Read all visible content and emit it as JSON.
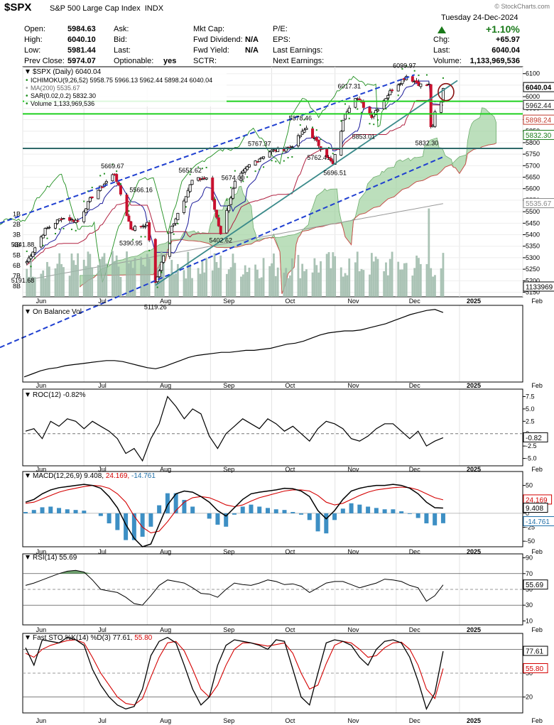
{
  "header": {
    "symbol": "$SPX",
    "name": "S&P 500 Large Cap Index",
    "exchange": "INDX",
    "watermark": "© StockCharts.com",
    "date": "Tuesday  24-Dec-2024",
    "change_pct": "+1.10%",
    "quote": [
      {
        "label": "Open:",
        "value": "5984.63"
      },
      {
        "label": "High:",
        "value": "6040.10"
      },
      {
        "label": "Low:",
        "value": "5981.44"
      },
      {
        "label": "Prev Close:",
        "value": "5974.07"
      }
    ],
    "quote2": [
      {
        "label": "Ask:",
        "value": ""
      },
      {
        "label": "Bid:",
        "value": ""
      },
      {
        "label": "Last:",
        "value": ""
      },
      {
        "label": "Optionable:",
        "value": "yes"
      }
    ],
    "quote3": [
      {
        "label": "Mkt Cap:",
        "value": ""
      },
      {
        "label": "Fwd Dividend:",
        "value": "N/A"
      },
      {
        "label": "Fwd Yield:",
        "value": "N/A"
      },
      {
        "label": "SCTR:",
        "value": ""
      }
    ],
    "quote4": [
      {
        "label": "P/E:",
        "value": ""
      },
      {
        "label": "EPS:",
        "value": ""
      },
      {
        "label": "Last Earnings:",
        "value": ""
      },
      {
        "label": "Next Earnings:",
        "value": ""
      }
    ],
    "quote5": [
      {
        "label": "Chg:",
        "value": "+65.97"
      },
      {
        "label": "Last:",
        "value": "6040.04"
      },
      {
        "label": "Volume:",
        "value": "1,133,969,536"
      }
    ]
  },
  "chart_data": [
    {
      "type": "candlestick",
      "title": "$SPX (Daily) 6040.04",
      "legend": [
        {
          "name": "ICHIMOKU(9,26,52)",
          "values": "5958.75 5966.13 5962.44 5898.24 6040.04"
        },
        {
          "name": "MA(200)",
          "values": "5535.67"
        },
        {
          "name": "SAR(0.02,0.2)",
          "values": "5832.30"
        },
        {
          "name": "Volume",
          "values": "1,133,969,536"
        }
      ],
      "x_labels": [
        "Jun",
        "Jul",
        "Aug",
        "Sep",
        "Oct",
        "Nov",
        "Dec",
        "2025",
        "Feb"
      ],
      "y_ticks": [
        5150,
        5200,
        5250,
        5300,
        5350,
        5400,
        5450,
        5500,
        5550,
        5600,
        5650,
        5700,
        5750,
        5800,
        5850,
        5900,
        5950,
        6000,
        6050,
        6100
      ],
      "y_tick_labels": [
        "5150",
        "5200",
        "5250",
        "5300",
        "5350",
        "5400",
        "5450",
        "5500",
        "5550",
        "5600",
        "5650",
        "5700",
        "5750",
        "5800",
        "5850",
        "5900",
        "5950",
        "6000",
        "6050",
        "6100"
      ],
      "volume_labels": [
        "8B",
        "7B",
        "6B",
        "5B",
        "4B",
        "3B",
        "2B",
        "1B"
      ],
      "ylim": [
        5130,
        6130
      ],
      "close_anchors": [
        {
          "date": "2024-06-03",
          "value": 5283
        },
        {
          "date": "2024-06-12",
          "value": 5421
        },
        {
          "date": "2024-06-20",
          "value": 5473
        },
        {
          "date": "2024-06-28",
          "value": 5460
        },
        {
          "date": "2024-07-05",
          "value": 5567
        },
        {
          "date": "2024-07-16",
          "value": 5667
        },
        {
          "date": "2024-07-24",
          "value": 5427
        },
        {
          "date": "2024-08-01",
          "value": 5446
        },
        {
          "date": "2024-08-05",
          "value": 5186
        },
        {
          "date": "2024-08-13",
          "value": 5434
        },
        {
          "date": "2024-08-23",
          "value": 5634
        },
        {
          "date": "2024-08-30",
          "value": 5648
        },
        {
          "date": "2024-09-06",
          "value": 5408
        },
        {
          "date": "2024-09-13",
          "value": 5626
        },
        {
          "date": "2024-09-20",
          "value": 5702
        },
        {
          "date": "2024-09-30",
          "value": 5762
        },
        {
          "date": "2024-10-10",
          "value": 5780
        },
        {
          "date": "2024-10-18",
          "value": 5864
        },
        {
          "date": "2024-10-31",
          "value": 5705
        },
        {
          "date": "2024-11-06",
          "value": 5929
        },
        {
          "date": "2024-11-11",
          "value": 6001
        },
        {
          "date": "2024-11-19",
          "value": 5917
        },
        {
          "date": "2024-11-29",
          "value": 6032
        },
        {
          "date": "2024-12-06",
          "value": 6090
        },
        {
          "date": "2024-12-13",
          "value": 6051
        },
        {
          "date": "2024-12-17",
          "value": 6050
        },
        {
          "date": "2024-12-18",
          "value": 5872
        },
        {
          "date": "2024-12-19",
          "value": 5867
        },
        {
          "date": "2024-12-20",
          "value": 5930
        },
        {
          "date": "2024-12-23",
          "value": 5974
        },
        {
          "date": "2024-12-24",
          "value": 6040
        }
      ],
      "annotations": [
        {
          "label": "5341.88",
          "value": 5341.88
        },
        {
          "label": "5191.68",
          "value": 5191.68
        },
        {
          "label": "5669.67",
          "value": 5669.67
        },
        {
          "label": "5566.16",
          "value": 5566.16
        },
        {
          "label": "5390.95",
          "value": 5390.95
        },
        {
          "label": "5119.26",
          "value": 5119.26
        },
        {
          "label": "5651.62",
          "value": 5651.62
        },
        {
          "label": "5402.62",
          "value": 5402.62
        },
        {
          "label": "5767.37",
          "value": 5767.37
        },
        {
          "label": "5674.00",
          "value": 5674.0
        },
        {
          "label": "5878.46",
          "value": 5878.46
        },
        {
          "label": "5762.41",
          "value": 5762.41
        },
        {
          "label": "5696.51",
          "value": 5696.51
        },
        {
          "label": "6017.31",
          "value": 6017.31
        },
        {
          "label": "5853.01",
          "value": 5853.01
        },
        {
          "label": "6099.97",
          "value": 6099.97
        },
        {
          "label": "5832.30",
          "value": 5832.3
        }
      ],
      "price_tags": [
        {
          "label": "6040.04",
          "value": 6040.04,
          "color": "#000000"
        },
        {
          "label": "5962.44",
          "value": 5962.44,
          "color": "#222222"
        },
        {
          "label": "5898.24",
          "value": 5898.24,
          "color": "#c0392b"
        },
        {
          "label": "5832.30",
          "value": 5832.3,
          "color": "#1a7a1a"
        },
        {
          "label": "5535.67",
          "value": 5535.67,
          "color": "#888888"
        }
      ],
      "volume_tag": "1133969"
    },
    {
      "type": "line",
      "title": "On Balance Vol",
      "values": [
        0,
        3,
        6,
        8,
        9,
        11,
        12,
        13,
        14,
        15,
        16,
        16,
        15,
        13,
        11,
        9,
        8,
        10,
        13,
        16,
        19,
        21,
        22,
        23,
        24,
        24,
        25,
        26,
        26,
        27,
        28,
        30,
        32,
        33,
        35,
        38,
        41,
        43,
        44,
        45,
        45,
        46,
        48,
        50,
        52,
        55,
        58,
        61,
        63,
        65,
        66,
        63
      ]
    },
    {
      "type": "line",
      "title": "ROC(12) -0.82%",
      "y_ticks": [
        -5,
        -2.5,
        0,
        2.5,
        5,
        7.5
      ],
      "y_tick_labels": [
        "-5.0",
        "-2.5",
        "0",
        "2.5",
        "5.0",
        "7.5"
      ],
      "ylim": [
        -6.5,
        9
      ],
      "tag": "-0.82",
      "values": [
        0.5,
        1.0,
        -1.0,
        2.5,
        1.5,
        3.0,
        2.5,
        1.0,
        2.5,
        1.5,
        0.5,
        -1.0,
        -4.0,
        -3.0,
        -5.5,
        -1.0,
        2.0,
        7.5,
        5.5,
        3.0,
        5.0,
        4.0,
        -0.5,
        -3.0,
        0.0,
        1.5,
        3.0,
        2.0,
        1.0,
        3.0,
        2.0,
        0.5,
        1.5,
        0.0,
        -1.5,
        1.0,
        2.5,
        2.0,
        1.0,
        -1.0,
        -1.5,
        -0.5,
        1.0,
        2.0,
        2.0,
        0.5,
        -1.0,
        0.5,
        -2.5,
        -1.5,
        -0.82
      ]
    },
    {
      "type": "line",
      "title": "MACD(12,26,9) 9.408, 24.169, -14.761",
      "legend": [
        {
          "name": "MACD(12,26,9)",
          "value": "9.408",
          "color": "#000000"
        },
        {
          "name": "signal",
          "value": "24.169",
          "color": "#d40000"
        },
        {
          "name": "hist",
          "value": "-14.761",
          "color": "#1f6fa8"
        }
      ],
      "y_ticks": [
        -50,
        -25,
        0,
        25,
        50
      ],
      "y_tick_labels": [
        "-50",
        "-25",
        "0",
        "25",
        "50"
      ],
      "ylim": [
        -60,
        75
      ],
      "tags": [
        {
          "label": "24.169",
          "value": 24.169
        },
        {
          "label": "9.408",
          "value": 9.408
        },
        {
          "label": "-14.761",
          "value": -14.761
        }
      ],
      "macd": [
        20,
        25,
        35,
        42,
        46,
        48,
        50,
        52,
        50,
        45,
        30,
        10,
        -20,
        -45,
        -60,
        -55,
        -20,
        15,
        35,
        40,
        38,
        30,
        20,
        5,
        -5,
        10,
        25,
        35,
        38,
        40,
        42,
        45,
        44,
        40,
        30,
        5,
        -10,
        5,
        25,
        40,
        45,
        48,
        50,
        50,
        52,
        50,
        45,
        35,
        20,
        10,
        9.4
      ],
      "signal": [
        18,
        20,
        26,
        32,
        38,
        42,
        45,
        48,
        50,
        49,
        45,
        35,
        20,
        -5,
        -25,
        -35,
        -32,
        -15,
        5,
        20,
        28,
        30,
        28,
        22,
        15,
        12,
        15,
        22,
        28,
        32,
        36,
        40,
        42,
        42,
        40,
        32,
        20,
        15,
        18,
        25,
        32,
        38,
        42,
        44,
        46,
        47,
        46,
        42,
        35,
        28,
        24.2
      ]
    },
    {
      "type": "line",
      "title": "RSI(14) 55.69",
      "y_ticks": [
        10,
        30,
        50,
        70,
        90
      ],
      "y_tick_labels": [
        "10",
        "30",
        "50",
        "70",
        "90"
      ],
      "ylim": [
        5,
        95
      ],
      "bands": [
        30,
        70
      ],
      "tag": "55.69",
      "values": [
        55,
        58,
        62,
        66,
        70,
        73,
        74,
        72,
        62,
        50,
        48,
        46,
        40,
        32,
        30,
        42,
        55,
        62,
        60,
        58,
        52,
        45,
        44,
        40,
        50,
        58,
        56,
        55,
        58,
        62,
        60,
        56,
        57,
        54,
        46,
        52,
        58,
        60,
        60,
        56,
        52,
        55,
        58,
        63,
        62,
        60,
        55,
        52,
        35,
        42,
        55.7
      ]
    },
    {
      "type": "line",
      "title": "Fast STO %K(14) %D(3) 77.61, 55.80",
      "legend": [
        {
          "name": "%K",
          "value": "77.61",
          "color": "#000000"
        },
        {
          "name": "%D",
          "value": "55.80",
          "color": "#d40000"
        }
      ],
      "y_ticks": [
        20,
        50,
        80
      ],
      "y_tick_labels": [
        "20",
        "50",
        "80"
      ],
      "ylim": [
        0,
        100
      ],
      "bands": [
        20,
        80
      ],
      "tags": [
        {
          "label": "77.61",
          "value": 77.61
        },
        {
          "label": "55.80",
          "value": 55.8
        }
      ],
      "k": [
        82,
        60,
        92,
        90,
        88,
        95,
        92,
        85,
        55,
        35,
        20,
        10,
        5,
        8,
        30,
        72,
        90,
        95,
        88,
        60,
        30,
        10,
        20,
        60,
        85,
        92,
        90,
        88,
        85,
        80,
        92,
        90,
        55,
        20,
        10,
        50,
        88,
        92,
        90,
        85,
        70,
        60,
        80,
        90,
        92,
        88,
        70,
        40,
        5,
        25,
        77.6
      ],
      "d": [
        75,
        70,
        80,
        85,
        88,
        91,
        92,
        88,
        70,
        50,
        35,
        20,
        12,
        10,
        18,
        45,
        70,
        88,
        90,
        78,
        55,
        30,
        20,
        35,
        60,
        80,
        88,
        88,
        86,
        84,
        86,
        88,
        75,
        50,
        30,
        35,
        62,
        85,
        90,
        88,
        80,
        70,
        72,
        82,
        88,
        89,
        80,
        60,
        30,
        18,
        55.8
      ]
    }
  ]
}
